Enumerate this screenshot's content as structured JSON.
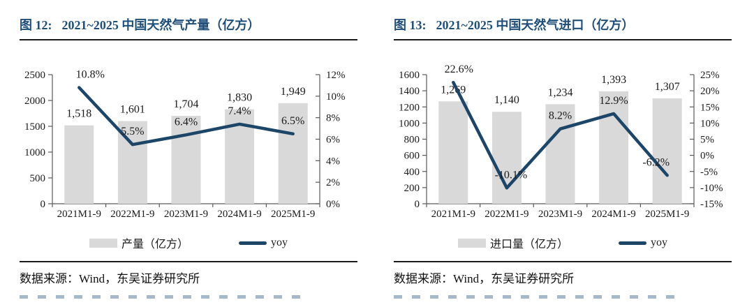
{
  "colors": {
    "title_blue": "#1f4e79",
    "bar_gray": "#d9d9d9",
    "line_navy": "#1d4568",
    "axis_gray": "#595959",
    "rule_black": "#1a1a1a"
  },
  "figures": [
    {
      "number": "图 12:",
      "source": "数据来源：Wind，东吴证券研究所"
    },
    {
      "number": "图 13:",
      "source": "数据来源：Wind，东吴证券研究所"
    }
  ],
  "chart_data": [
    {
      "type": "bar+line",
      "title": "2021~2025 中国天然气产量（亿方）",
      "categories": [
        "2021M1-9",
        "2022M1-9",
        "2023M1-9",
        "2024M1-9",
        "2025M1-9"
      ],
      "series": [
        {
          "name": "产量（亿方）",
          "kind": "bar",
          "axis": "left",
          "color": "#d9d9d9",
          "values": [
            1518,
            1601,
            1704,
            1830,
            1949
          ],
          "labels": [
            "1,518",
            "1,601",
            "1,704",
            "1,830",
            "1,949"
          ]
        },
        {
          "name": "yoy",
          "kind": "line",
          "axis": "right",
          "color": "#1d4568",
          "values": [
            10.8,
            5.5,
            6.4,
            7.4,
            6.5
          ],
          "labels": [
            "10.8%",
            "5.5%",
            "6.4%",
            "7.4%",
            "6.5%"
          ],
          "label_dx": [
            16,
            0,
            0,
            0,
            0
          ]
        }
      ],
      "left_axis": {
        "min": 0,
        "max": 2500,
        "step": 500
      },
      "right_axis": {
        "min": 0,
        "max": 12,
        "step": 2,
        "suffix": "%"
      },
      "grid": false,
      "legend_position": "bottom"
    },
    {
      "type": "bar+line",
      "title": "2021~2025 中国天然气进口（亿方）",
      "categories": [
        "2021M1-9",
        "2022M1-9",
        "2023M1-9",
        "2024M1-9",
        "2025M1-9"
      ],
      "series": [
        {
          "name": "进口量（亿方）",
          "kind": "bar",
          "axis": "left",
          "color": "#d9d9d9",
          "values": [
            1269,
            1140,
            1234,
            1393,
            1307
          ],
          "labels": [
            "1,269",
            "1,140",
            "1,234",
            "1,393",
            "1,307"
          ]
        },
        {
          "name": "yoy",
          "kind": "line",
          "axis": "right",
          "color": "#1d4568",
          "values": [
            22.6,
            -10.1,
            8.2,
            12.9,
            -6.2
          ],
          "labels": [
            "22.6%",
            "-10.1%",
            "8.2%",
            "12.9%",
            "-6.2%"
          ],
          "label_dx": [
            8,
            6,
            0,
            0,
            -16
          ]
        }
      ],
      "left_axis": {
        "min": 0,
        "max": 1600,
        "step": 200
      },
      "right_axis": {
        "min": -15,
        "max": 25,
        "step": 5,
        "suffix": "%"
      },
      "grid": false,
      "legend_position": "bottom"
    }
  ]
}
